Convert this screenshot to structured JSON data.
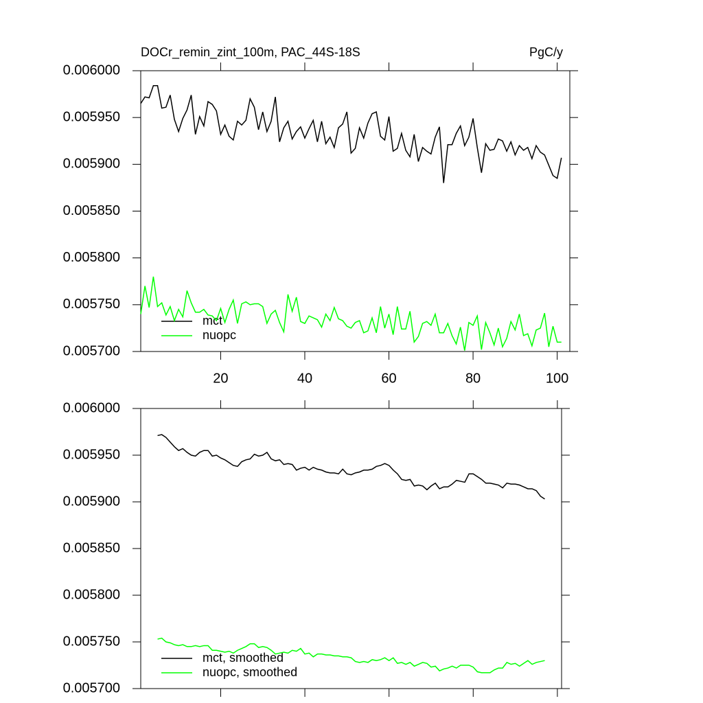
{
  "chart_data": [
    {
      "type": "line",
      "title": "DOCr_remin_zint_100m, PAC_44S-18S",
      "units": "PgC/y",
      "x": [
        1,
        2,
        3,
        4,
        5,
        6,
        7,
        8,
        9,
        10,
        11,
        12,
        13,
        14,
        15,
        16,
        17,
        18,
        19,
        20,
        21,
        22,
        23,
        24,
        25,
        26,
        27,
        28,
        29,
        30,
        31,
        32,
        33,
        34,
        35,
        36,
        37,
        38,
        39,
        40,
        41,
        42,
        43,
        44,
        45,
        46,
        47,
        48,
        49,
        50,
        51,
        52,
        53,
        54,
        55,
        56,
        57,
        58,
        59,
        60,
        61,
        62,
        63,
        64,
        65,
        66,
        67,
        68,
        69,
        70,
        71,
        72,
        73,
        74,
        75,
        76,
        77,
        78,
        79,
        80,
        81,
        82,
        83,
        84,
        85,
        86,
        87,
        88,
        89,
        90,
        91,
        92,
        93,
        94,
        95,
        96,
        97,
        98,
        99,
        100,
        101
      ],
      "xlim": [
        1,
        103
      ],
      "xticks": [
        20,
        40,
        60,
        80,
        100
      ],
      "ylim": [
        0.0057,
        0.006
      ],
      "yticks": [
        {
          "value": 0.0057,
          "label": "0.005700"
        },
        {
          "value": 0.00575,
          "label": "0.005750"
        },
        {
          "value": 0.0058,
          "label": "0.005800"
        },
        {
          "value": 0.00585,
          "label": "0.005850"
        },
        {
          "value": 0.0059,
          "label": "0.005900"
        },
        {
          "value": 0.00595,
          "label": "0.005950"
        },
        {
          "value": 0.006,
          "label": "0.006000"
        }
      ],
      "legend": "lower-left",
      "series": [
        {
          "name": "mct",
          "color": "#000000",
          "values": [
            0.005965,
            0.005972,
            0.005971,
            0.005984,
            0.005984,
            0.00596,
            0.005961,
            0.005974,
            0.005948,
            0.005935,
            0.005949,
            0.005958,
            0.005974,
            0.005932,
            0.005951,
            0.005941,
            0.005967,
            0.005964,
            0.005957,
            0.005932,
            0.005942,
            0.00593,
            0.005926,
            0.005946,
            0.005942,
            0.005947,
            0.00597,
            0.005961,
            0.005937,
            0.005956,
            0.005935,
            0.005946,
            0.005972,
            0.005924,
            0.005939,
            0.005946,
            0.005927,
            0.005935,
            0.00594,
            0.005928,
            0.005938,
            0.005947,
            0.005924,
            0.005946,
            0.005922,
            0.005929,
            0.005918,
            0.005939,
            0.005943,
            0.005956,
            0.005912,
            0.005917,
            0.005939,
            0.005928,
            0.005944,
            0.005954,
            0.005956,
            0.00593,
            0.005926,
            0.005951,
            0.005914,
            0.005917,
            0.005933,
            0.005915,
            0.005908,
            0.005932,
            0.005903,
            0.005918,
            0.005914,
            0.005911,
            0.005929,
            0.00594,
            0.00588,
            0.005921,
            0.005921,
            0.005933,
            0.005941,
            0.00592,
            0.005929,
            0.005949,
            0.005918,
            0.005891,
            0.005922,
            0.005915,
            0.005916,
            0.005927,
            0.005925,
            0.005914,
            0.005924,
            0.00591,
            0.00592,
            0.005915,
            0.005918,
            0.005906,
            0.00592,
            0.005913,
            0.00591,
            0.005899,
            0.005888,
            0.005885,
            0.005907
          ]
        },
        {
          "name": "nuopc",
          "color": "#00ff00",
          "values": [
            0.00574,
            0.00577,
            0.005747,
            0.00578,
            0.005748,
            0.005752,
            0.005739,
            0.005748,
            0.005733,
            0.005745,
            0.005737,
            0.005765,
            0.005752,
            0.005742,
            0.005742,
            0.005745,
            0.005739,
            0.005738,
            0.005733,
            0.005746,
            0.005731,
            0.005745,
            0.005755,
            0.00573,
            0.005751,
            0.005753,
            0.00575,
            0.005751,
            0.005751,
            0.005748,
            0.00573,
            0.00574,
            0.005744,
            0.005731,
            0.005721,
            0.005761,
            0.005743,
            0.005758,
            0.005732,
            0.00573,
            0.005738,
            0.005736,
            0.005734,
            0.005726,
            0.00574,
            0.005733,
            0.005747,
            0.005735,
            0.005733,
            0.005727,
            0.005725,
            0.005731,
            0.005733,
            0.00572,
            0.005722,
            0.005736,
            0.00572,
            0.005748,
            0.005725,
            0.00574,
            0.005718,
            0.005748,
            0.005724,
            0.005724,
            0.005743,
            0.00571,
            0.005716,
            0.00573,
            0.005732,
            0.005728,
            0.00574,
            0.00572,
            0.00572,
            0.00573,
            0.005717,
            0.005708,
            0.005726,
            0.005701,
            0.005731,
            0.005728,
            0.005738,
            0.005702,
            0.005731,
            0.00572,
            0.005707,
            0.005725,
            0.005705,
            0.005714,
            0.005732,
            0.005723,
            0.00574,
            0.005717,
            0.005719,
            0.005706,
            0.005723,
            0.005725,
            0.005741,
            0.005705,
            0.005727,
            0.00571,
            0.00571
          ]
        }
      ]
    },
    {
      "type": "line",
      "x": [
        5,
        6,
        7,
        8,
        9,
        10,
        11,
        12,
        13,
        14,
        15,
        16,
        17,
        18,
        19,
        20,
        21,
        22,
        23,
        24,
        25,
        26,
        27,
        28,
        29,
        30,
        31,
        32,
        33,
        34,
        35,
        36,
        37,
        38,
        39,
        40,
        41,
        42,
        43,
        44,
        45,
        46,
        47,
        48,
        49,
        50,
        51,
        52,
        53,
        54,
        55,
        56,
        57,
        58,
        59,
        60,
        61,
        62,
        63,
        64,
        65,
        66,
        67,
        68,
        69,
        70,
        71,
        72,
        73,
        74,
        75,
        76,
        77,
        78,
        79,
        80,
        81,
        82,
        83,
        84,
        85,
        86,
        87,
        88,
        89,
        90,
        91,
        92,
        93,
        94,
        95,
        96,
        97
      ],
      "xlim": [
        1,
        101
      ],
      "xticks": [
        20,
        40,
        60,
        80,
        100
      ],
      "ylim": [
        0.0057,
        0.006
      ],
      "yticks": [
        {
          "value": 0.0057,
          "label": "0.005700"
        },
        {
          "value": 0.00575,
          "label": "0.005750"
        },
        {
          "value": 0.0058,
          "label": "0.005800"
        },
        {
          "value": 0.00585,
          "label": "0.005850"
        },
        {
          "value": 0.0059,
          "label": "0.005900"
        },
        {
          "value": 0.00595,
          "label": "0.005950"
        },
        {
          "value": 0.006,
          "label": "0.006000"
        }
      ],
      "legend": "lower-left",
      "series": [
        {
          "name": "mct, smoothed",
          "color": "#000000",
          "values": [
            0.005971,
            0.005972,
            0.005969,
            0.005964,
            0.005959,
            0.005955,
            0.005957,
            0.005953,
            0.00595,
            0.005949,
            0.005953,
            0.005955,
            0.005955,
            0.005949,
            0.00595,
            0.005947,
            0.005945,
            0.005942,
            0.005939,
            0.005938,
            0.005943,
            0.005945,
            0.005946,
            0.005951,
            0.005949,
            0.00595,
            0.005953,
            0.005946,
            0.005944,
            0.005945,
            0.00594,
            0.005941,
            0.00594,
            0.005934,
            0.005936,
            0.005937,
            0.005934,
            0.005937,
            0.005935,
            0.005934,
            0.005932,
            0.005931,
            0.005931,
            0.00593,
            0.005935,
            0.00593,
            0.005929,
            0.005931,
            0.005932,
            0.005934,
            0.005934,
            0.005935,
            0.005938,
            0.005939,
            0.005941,
            0.005939,
            0.005934,
            0.00593,
            0.005924,
            0.005923,
            0.005924,
            0.005917,
            0.005918,
            0.005917,
            0.005913,
            0.005917,
            0.00592,
            0.005914,
            0.005916,
            0.005916,
            0.005919,
            0.005923,
            0.005922,
            0.005921,
            0.00593,
            0.00593,
            0.005927,
            0.005924,
            0.00592,
            0.00592,
            0.005919,
            0.005918,
            0.005915,
            0.00592,
            0.005919,
            0.005919,
            0.005918,
            0.005916,
            0.005914,
            0.005914,
            0.005912,
            0.005906,
            0.005903
          ]
        },
        {
          "name": "nuopc, smoothed",
          "color": "#00ff00",
          "values": [
            0.005753,
            0.005754,
            0.00575,
            0.005749,
            0.005747,
            0.005746,
            0.005747,
            0.005745,
            0.005745,
            0.005746,
            0.005745,
            0.005746,
            0.005746,
            0.005741,
            0.005741,
            0.00574,
            0.005739,
            0.00574,
            0.005738,
            0.005741,
            0.005743,
            0.005745,
            0.005748,
            0.005748,
            0.005744,
            0.005745,
            0.005744,
            0.005741,
            0.005737,
            0.005738,
            0.005739,
            0.005738,
            0.005741,
            0.00574,
            0.005743,
            0.005737,
            0.005738,
            0.005734,
            0.005737,
            0.005737,
            0.005736,
            0.005736,
            0.005735,
            0.005735,
            0.005734,
            0.005734,
            0.005733,
            0.005729,
            0.005728,
            0.005729,
            0.005728,
            0.005731,
            0.00573,
            0.005731,
            0.005733,
            0.00573,
            0.005733,
            0.005727,
            0.005728,
            0.005726,
            0.005728,
            0.005724,
            0.005726,
            0.005728,
            0.005727,
            0.005723,
            0.005724,
            0.005719,
            0.005721,
            0.005722,
            0.005724,
            0.005722,
            0.005725,
            0.005725,
            0.005725,
            0.005723,
            0.005718,
            0.005717,
            0.005717,
            0.005717,
            0.00572,
            0.005722,
            0.005722,
            0.005728,
            0.005726,
            0.005727,
            0.005724,
            0.005727,
            0.00573,
            0.005726,
            0.005728,
            0.005729,
            0.00573
          ]
        }
      ]
    }
  ]
}
